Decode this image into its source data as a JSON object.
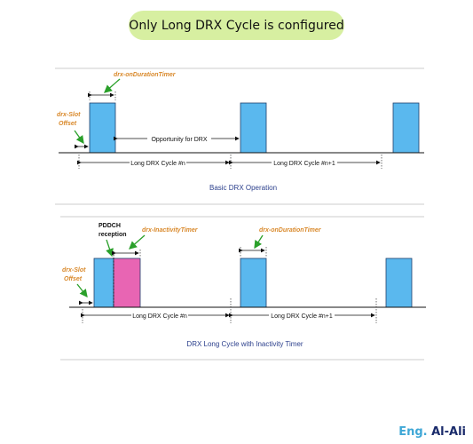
{
  "title": "Only Long DRX Cycle is configured",
  "diagram1": {
    "on_duration_label": "drx-onDurationTimer",
    "slot_offset_label_1": "drx-Slot",
    "slot_offset_label_2": "Offset",
    "opportunity_label": "Opportunity for DRX",
    "cycle_n_label": "Long DRX Cycle #n",
    "cycle_n1_label": "Long DRX Cycle #n+1",
    "caption": "Basic DRX Operation"
  },
  "diagram2": {
    "pdcch_label_1": "PDDCH",
    "pdcch_label_2": "reception",
    "inactivity_label": "drx-InactivityTimer",
    "on_duration_label": "drx-onDurationTimer",
    "slot_offset_label_1": "drx-Slot",
    "slot_offset_label_2": "Offset",
    "cycle_n_label": "Long DRX Cycle #n",
    "cycle_n1_label": "Long DRX Cycle #n+1",
    "caption": "DRX Long Cycle with Inactivity Timer"
  },
  "signature": {
    "prefix": "Eng.",
    "name": "Al-Ali"
  },
  "colors": {
    "on_duration_block": "#5ab8ee",
    "inactivity_block": "#e865b3",
    "banner": "#d7efa1",
    "annotation": "#d9892b",
    "arrow_green": "#2aa02a",
    "caption_blue": "#2b3f8c"
  }
}
